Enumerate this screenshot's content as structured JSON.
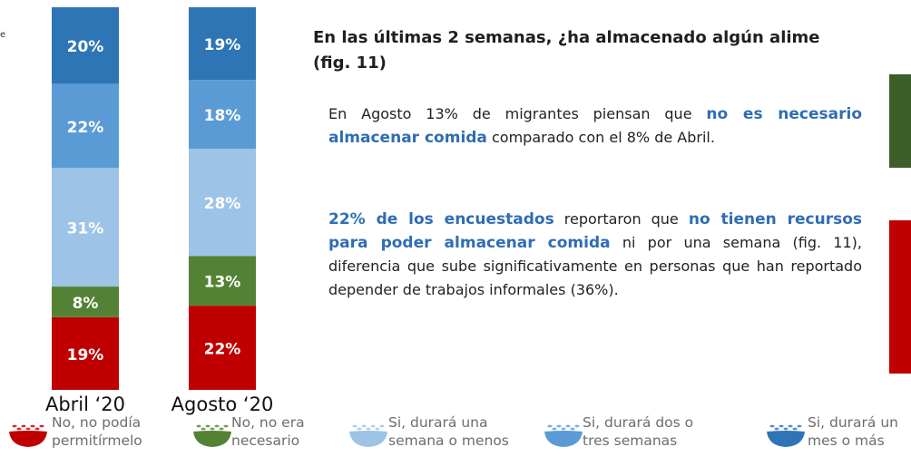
{
  "chart_data": {
    "type": "stacked-bar",
    "categories": [
      "Abril ‘20",
      "Agosto ‘20"
    ],
    "ylim": [
      0,
      100
    ],
    "series": [
      {
        "name": "No, no podía permitírmelo",
        "color": "#c00000",
        "values": [
          19,
          22
        ],
        "value_labels": [
          "19%",
          "22%"
        ]
      },
      {
        "name": "No, no era necesario",
        "color": "#548235",
        "values": [
          8,
          13
        ],
        "value_labels": [
          "8%",
          "13%"
        ]
      },
      {
        "name": "Si, durará una semana o menos",
        "color": "#9dc3e6",
        "values": [
          31,
          28
        ],
        "value_labels": [
          "31%",
          "28%"
        ]
      },
      {
        "name": "Si, durará dos o tres semanas",
        "color": "#5b9bd5",
        "values": [
          22,
          18
        ],
        "value_labels": [
          "22%",
          "18%"
        ]
      },
      {
        "name": "Si, durará un mes o más",
        "color": "#2e75b6",
        "values": [
          20,
          19
        ],
        "value_labels": [
          "20%",
          "19%"
        ]
      }
    ]
  },
  "panel": {
    "left_fragment": "e",
    "title": "En las últimas 2 semanas, ¿ha almacenado algún alime",
    "title_line2": "(fig. 11)",
    "paragraphs": [
      {
        "runs": [
          {
            "text": "En Agosto 13% de migrantes piensan que ",
            "bold": false
          },
          {
            "text": "no es necesario almacenar comida",
            "bold": true
          },
          {
            "text": " comparado con el 8% de Abril.",
            "bold": false
          }
        ]
      },
      {
        "runs": [
          {
            "text": "22% de los encuestados",
            "bold": true
          },
          {
            "text": " reportaron que ",
            "bold": false
          },
          {
            "text": "no tienen recursos para poder almacenar comida",
            "bold": true
          },
          {
            "text": " ni por una semana (fig. 11), diferencia que sube significativamente en personas que han reportado depender de trabajos informales (36%).",
            "bold": false
          }
        ]
      }
    ]
  }
}
